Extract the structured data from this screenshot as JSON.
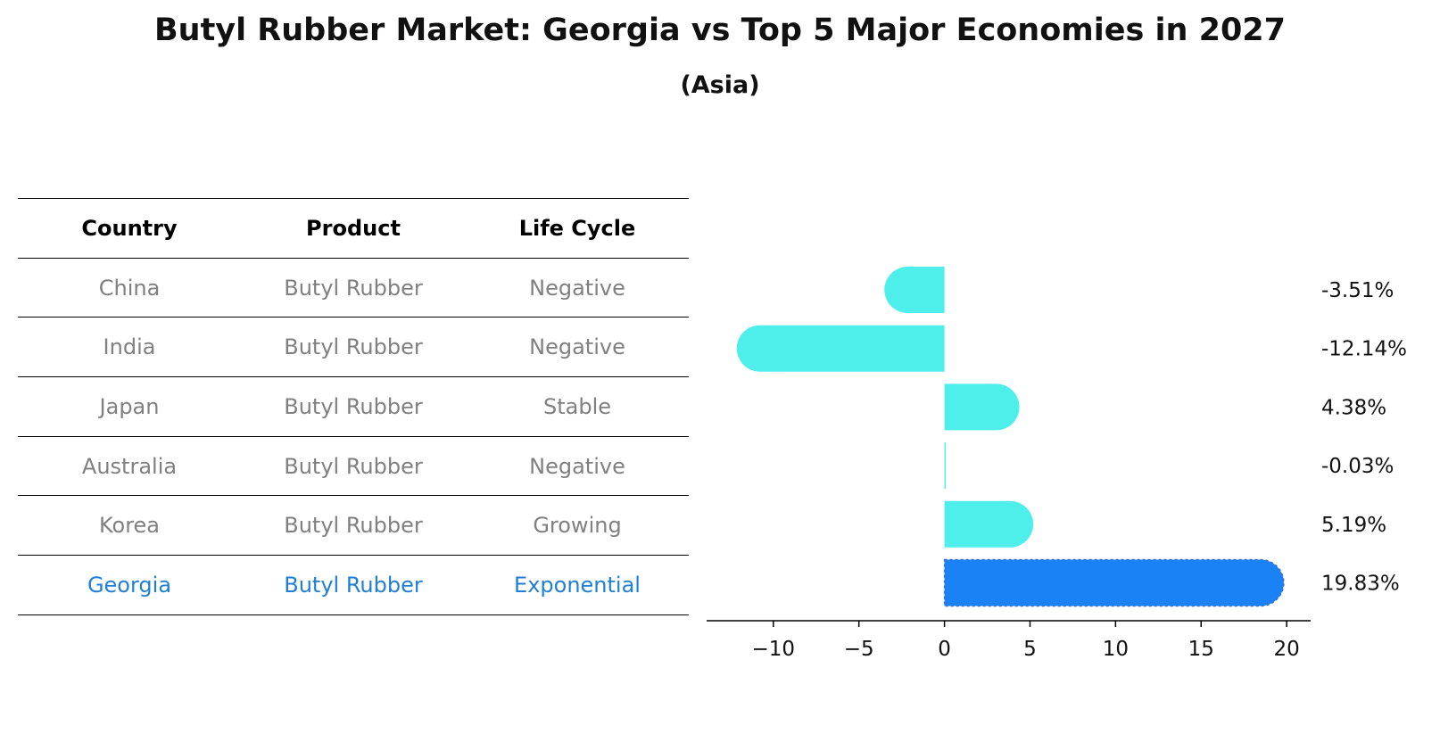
{
  "title": "Butyl Rubber Market: Georgia vs Top 5 Major Economies in 2027",
  "subtitle": "(Asia)",
  "table": {
    "headers": [
      "Country",
      "Product",
      "Life Cycle"
    ],
    "rows": [
      [
        "China",
        "Butyl Rubber",
        "Negative"
      ],
      [
        "India",
        "Butyl Rubber",
        "Negative"
      ],
      [
        "Japan",
        "Butyl Rubber",
        "Stable"
      ],
      [
        "Australia",
        "Butyl Rubber",
        "Negative"
      ],
      [
        "Korea",
        "Butyl Rubber",
        "Growing"
      ],
      [
        "Georgia",
        "Butyl Rubber",
        "Exponential"
      ]
    ]
  },
  "colors": {
    "bar": "#4eeeea",
    "highlight": "#1a82f5",
    "highlight_text": "#1f7fd6",
    "muted_text": "#808080"
  },
  "chart_data": {
    "type": "bar",
    "orientation": "horizontal",
    "categories": [
      "China",
      "India",
      "Japan",
      "Australia",
      "Korea",
      "Georgia"
    ],
    "values": [
      -3.51,
      -12.14,
      4.38,
      -0.03,
      5.19,
      19.83
    ],
    "value_labels": [
      "-3.51%",
      "-12.14%",
      "4.38%",
      "-0.03%",
      "5.19%",
      "19.83%"
    ],
    "highlight": "Georgia",
    "xlim": [
      -13.9,
      21.4
    ],
    "xticks": [
      -10,
      -5,
      0,
      5,
      10,
      15,
      20
    ],
    "xtick_labels": [
      "−10",
      "−5",
      "0",
      "5",
      "10",
      "15",
      "20"
    ],
    "grid": false
  }
}
